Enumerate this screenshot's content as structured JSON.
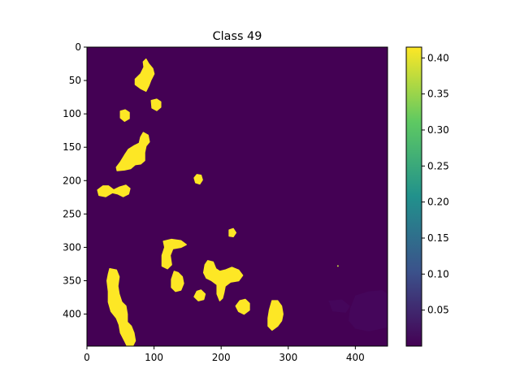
{
  "chart_data": {
    "type": "heatmap",
    "title": "Class 49",
    "xlabel": "",
    "ylabel": "",
    "xlim": [
      0,
      448
    ],
    "ylim": [
      448,
      0
    ],
    "xticks": [
      0,
      100,
      200,
      300,
      400
    ],
    "yticks": [
      0,
      50,
      100,
      150,
      200,
      250,
      300,
      350,
      400
    ],
    "grid": false,
    "colormap": "viridis",
    "colormap_colors": [
      "#440154",
      "#3b528b",
      "#21918c",
      "#5ec962",
      "#fde725"
    ],
    "colorbar": {
      "range": [
        0.0,
        0.415
      ],
      "ticks": [
        "0.05",
        "0.10",
        "0.15",
        "0.20",
        "0.25",
        "0.30",
        "0.35",
        "0.40"
      ],
      "tick_values": [
        0.05,
        0.1,
        0.15,
        0.2,
        0.25,
        0.3,
        0.35,
        0.4
      ]
    },
    "background_value": 0.0,
    "high_value": 0.415,
    "blobs": [
      {
        "points": [
          [
            88,
            18
          ],
          [
            92,
            25
          ],
          [
            98,
            32
          ],
          [
            100,
            40
          ],
          [
            95,
            50
          ],
          [
            92,
            58
          ],
          [
            88,
            66
          ],
          [
            80,
            62
          ],
          [
            72,
            56
          ],
          [
            72,
            48
          ],
          [
            80,
            40
          ],
          [
            85,
            30
          ],
          [
            84,
            22
          ]
        ]
      },
      {
        "points": [
          [
            96,
            80
          ],
          [
            104,
            78
          ],
          [
            110,
            82
          ],
          [
            110,
            90
          ],
          [
            104,
            95
          ],
          [
            97,
            91
          ]
        ]
      },
      {
        "points": [
          [
            50,
            96
          ],
          [
            57,
            94
          ],
          [
            63,
            98
          ],
          [
            63,
            107
          ],
          [
            56,
            111
          ],
          [
            50,
            106
          ]
        ]
      },
      {
        "points": [
          [
            84,
            128
          ],
          [
            91,
            132
          ],
          [
            93,
            142
          ],
          [
            88,
            148
          ],
          [
            86,
            158
          ],
          [
            86,
            170
          ],
          [
            80,
            175
          ],
          [
            72,
            176
          ],
          [
            65,
            182
          ],
          [
            56,
            184
          ],
          [
            45,
            185
          ],
          [
            44,
            180
          ],
          [
            50,
            172
          ],
          [
            56,
            162
          ],
          [
            62,
            153
          ],
          [
            70,
            148
          ],
          [
            78,
            144
          ],
          [
            80,
            135
          ]
        ]
      },
      {
        "points": [
          [
            164,
            191
          ],
          [
            170,
            192
          ],
          [
            172,
            199
          ],
          [
            168,
            205
          ],
          [
            162,
            203
          ],
          [
            160,
            196
          ]
        ]
      },
      {
        "points": [
          [
            16,
            214
          ],
          [
            24,
            208
          ],
          [
            32,
            208
          ],
          [
            40,
            214
          ],
          [
            48,
            210
          ],
          [
            58,
            207
          ],
          [
            64,
            212
          ],
          [
            62,
            220
          ],
          [
            54,
            224
          ],
          [
            46,
            220
          ],
          [
            38,
            218
          ],
          [
            28,
            224
          ],
          [
            18,
            222
          ]
        ]
      },
      {
        "points": [
          [
            212,
            274
          ],
          [
            218,
            272
          ],
          [
            222,
            278
          ],
          [
            218,
            284
          ],
          [
            212,
            283
          ]
        ]
      },
      {
        "points": [
          [
            114,
            291
          ],
          [
            126,
            288
          ],
          [
            140,
            290
          ],
          [
            148,
            296
          ],
          [
            140,
            300
          ],
          [
            128,
            302
          ],
          [
            124,
            312
          ],
          [
            126,
            326
          ],
          [
            120,
            332
          ],
          [
            112,
            328
          ],
          [
            112,
            312
          ],
          [
            116,
            300
          ]
        ]
      },
      {
        "points": [
          [
            180,
            320
          ],
          [
            188,
            322
          ],
          [
            192,
            332
          ],
          [
            198,
            336
          ],
          [
            206,
            334
          ],
          [
            216,
            330
          ],
          [
            226,
            334
          ],
          [
            232,
            342
          ],
          [
            226,
            350
          ],
          [
            214,
            352
          ],
          [
            206,
            358
          ],
          [
            204,
            368
          ],
          [
            202,
            376
          ],
          [
            198,
            380
          ],
          [
            194,
            370
          ],
          [
            194,
            356
          ],
          [
            186,
            350
          ],
          [
            178,
            346
          ],
          [
            174,
            338
          ],
          [
            176,
            326
          ]
        ]
      },
      {
        "points": [
          [
            130,
            336
          ],
          [
            136,
            338
          ],
          [
            142,
            344
          ],
          [
            144,
            354
          ],
          [
            140,
            364
          ],
          [
            132,
            366
          ],
          [
            126,
            360
          ],
          [
            126,
            348
          ]
        ]
      },
      {
        "points": [
          [
            164,
            366
          ],
          [
            170,
            364
          ],
          [
            176,
            370
          ],
          [
            174,
            378
          ],
          [
            166,
            380
          ],
          [
            160,
            374
          ]
        ]
      },
      {
        "points": [
          [
            228,
            380
          ],
          [
            236,
            378
          ],
          [
            242,
            384
          ],
          [
            242,
            394
          ],
          [
            234,
            400
          ],
          [
            226,
            396
          ],
          [
            222,
            388
          ]
        ]
      },
      {
        "points": [
          [
            34,
            332
          ],
          [
            44,
            334
          ],
          [
            48,
            344
          ],
          [
            46,
            358
          ],
          [
            48,
            370
          ],
          [
            52,
            382
          ],
          [
            58,
            388
          ],
          [
            60,
            400
          ],
          [
            60,
            412
          ],
          [
            66,
            418
          ],
          [
            70,
            428
          ],
          [
            72,
            440
          ],
          [
            68,
            448
          ],
          [
            60,
            448
          ],
          [
            56,
            440
          ],
          [
            50,
            428
          ],
          [
            48,
            416
          ],
          [
            44,
            406
          ],
          [
            36,
            396
          ],
          [
            32,
            382
          ],
          [
            32,
            366
          ],
          [
            30,
            350
          ],
          [
            32,
            340
          ]
        ]
      },
      {
        "points": [
          [
            276,
            380
          ],
          [
            284,
            380
          ],
          [
            290,
            388
          ],
          [
            292,
            400
          ],
          [
            290,
            410
          ],
          [
            284,
            418
          ],
          [
            276,
            424
          ],
          [
            270,
            418
          ],
          [
            270,
            406
          ],
          [
            272,
            394
          ]
        ]
      }
    ],
    "specks": [
      [
        374,
        328
      ]
    ],
    "faint_regions": [
      {
        "points": [
          [
            400,
            372
          ],
          [
            420,
            366
          ],
          [
            440,
            364
          ],
          [
            448,
            370
          ],
          [
            448,
            420
          ],
          [
            420,
            426
          ],
          [
            400,
            422
          ],
          [
            390,
            410
          ],
          [
            392,
            392
          ]
        ]
      },
      {
        "points": [
          [
            360,
            380
          ],
          [
            380,
            378
          ],
          [
            392,
            388
          ],
          [
            386,
            398
          ],
          [
            366,
            396
          ]
        ]
      }
    ]
  }
}
